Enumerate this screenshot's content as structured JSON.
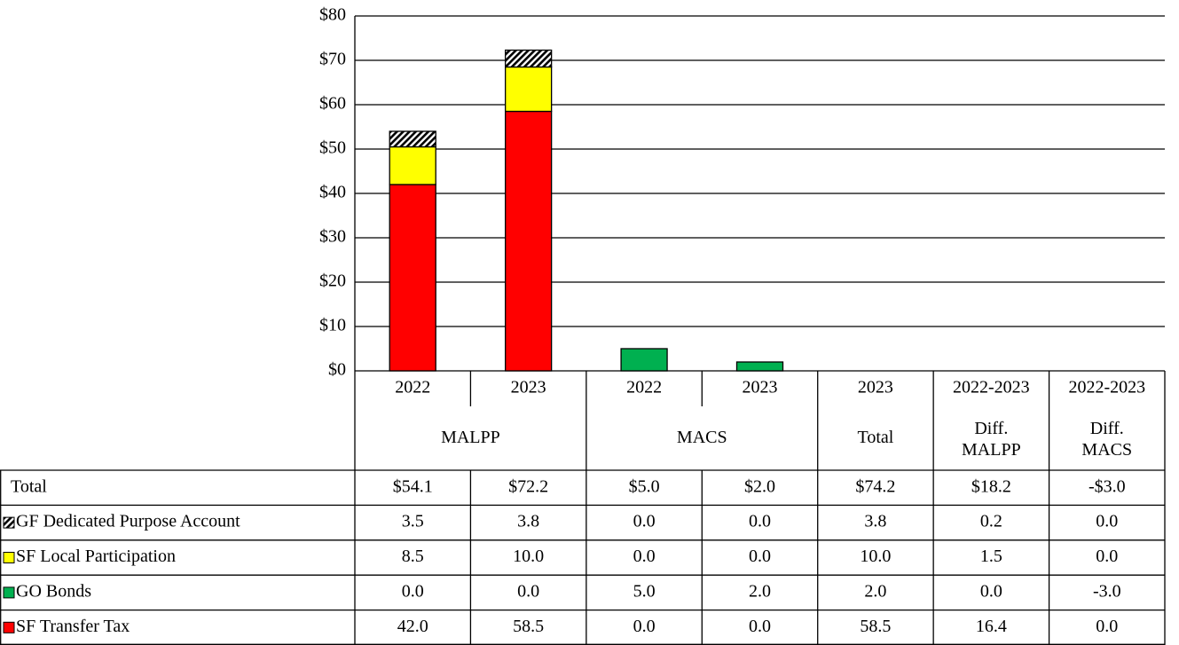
{
  "chart_data": {
    "type": "bar",
    "stacked": true,
    "ylim": [
      0,
      80
    ],
    "yticks": [
      {
        "value": 0,
        "label": "$0"
      },
      {
        "value": 10,
        "label": "$10"
      },
      {
        "value": 20,
        "label": "$20"
      },
      {
        "value": 30,
        "label": "$30"
      },
      {
        "value": 40,
        "label": "$40"
      },
      {
        "value": 50,
        "label": "$50"
      },
      {
        "value": 60,
        "label": "$60"
      },
      {
        "value": 70,
        "label": "$70"
      },
      {
        "value": 80,
        "label": "$80"
      }
    ],
    "grid": true,
    "categories": [
      "2022",
      "2023",
      "2022",
      "2023",
      "2023",
      "2022-2023",
      "2022-2023"
    ],
    "groups": [
      {
        "label": "MALPP",
        "span": 2,
        "plotted": true
      },
      {
        "label": "MACS",
        "span": 2,
        "plotted": true
      },
      {
        "label": "Total",
        "span": 1,
        "plotted": false
      },
      {
        "label": "Diff.\nMALPP",
        "span": 1,
        "plotted": false
      },
      {
        "label": "Diff.\nMACS",
        "span": 1,
        "plotted": false
      }
    ],
    "total": {
      "name": "Total",
      "values": [
        54.1,
        72.2,
        5.0,
        2.0,
        74.2,
        18.2,
        -3.0
      ],
      "value_labels": [
        "$54.1",
        "$72.2",
        "$5.0",
        "$2.0",
        "$74.2",
        "$18.2",
        "-$3.0"
      ]
    },
    "series": [
      {
        "name": "GF Dedicated Purpose Account",
        "color": "#000000",
        "pattern": "hatch",
        "values": [
          3.5,
          3.8,
          0,
          0,
          3.8,
          0.2,
          0
        ],
        "value_labels": [
          "3.5",
          "3.8",
          "0.0",
          "0.0",
          "3.8",
          "0.2",
          "0.0"
        ]
      },
      {
        "name": "SF Local Participation",
        "color": "#ffff00",
        "values": [
          8.5,
          10.0,
          0,
          0,
          10.0,
          1.5,
          0
        ],
        "value_labels": [
          "8.5",
          "10.0",
          "0.0",
          "0.0",
          "10.0",
          "1.5",
          "0.0"
        ]
      },
      {
        "name": "GO Bonds",
        "color": "#00b050",
        "values": [
          0,
          0,
          5.0,
          2.0,
          2.0,
          0,
          -3.0
        ],
        "value_labels": [
          "0.0",
          "0.0",
          "5.0",
          "2.0",
          "2.0",
          "0.0",
          "-3.0"
        ]
      },
      {
        "name": "SF Transfer Tax",
        "color": "#ff0000",
        "values": [
          42.0,
          58.5,
          0,
          0,
          58.5,
          16.4,
          0
        ],
        "value_labels": [
          "42.0",
          "58.5",
          "0.0",
          "0.0",
          "58.5",
          "16.4",
          "0.0"
        ]
      }
    ]
  }
}
